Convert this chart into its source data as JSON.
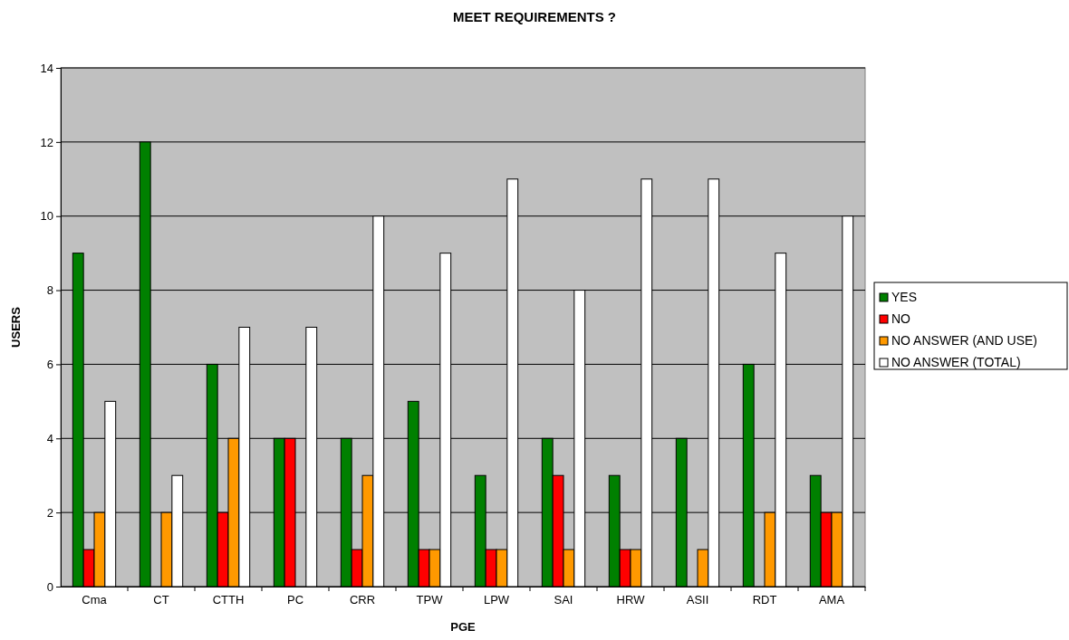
{
  "chart_data": {
    "type": "bar",
    "title": "MEET REQUIREMENTS  ?",
    "xlabel": "PGE",
    "ylabel": "USERS",
    "categories": [
      "Cma",
      "CT",
      "CTTH",
      "PC",
      "CRR",
      "TPW",
      "LPW",
      "SAI",
      "HRW",
      "ASII",
      "RDT",
      "AMA"
    ],
    "series": [
      {
        "name": "YES",
        "color": "#008000",
        "values": [
          9,
          12,
          6,
          4,
          4,
          5,
          3,
          4,
          3,
          4,
          6,
          3
        ]
      },
      {
        "name": "NO",
        "color": "#ff0000",
        "values": [
          1,
          0,
          2,
          4,
          1,
          1,
          1,
          3,
          1,
          0,
          0,
          2
        ]
      },
      {
        "name": "NO ANSWER (AND USE)",
        "color": "#ff9900",
        "values": [
          2,
          2,
          4,
          0,
          3,
          1,
          1,
          1,
          1,
          1,
          2,
          2
        ]
      },
      {
        "name": "NO ANSWER (TOTAL)",
        "color": "#ffffff",
        "values": [
          5,
          3,
          7,
          7,
          10,
          9,
          11,
          8,
          11,
          11,
          9,
          10
        ]
      }
    ],
    "ylim": [
      0,
      14
    ],
    "yticks": [
      0,
      2,
      4,
      6,
      8,
      10,
      12,
      14
    ],
    "grid": "y",
    "legend": "right"
  }
}
